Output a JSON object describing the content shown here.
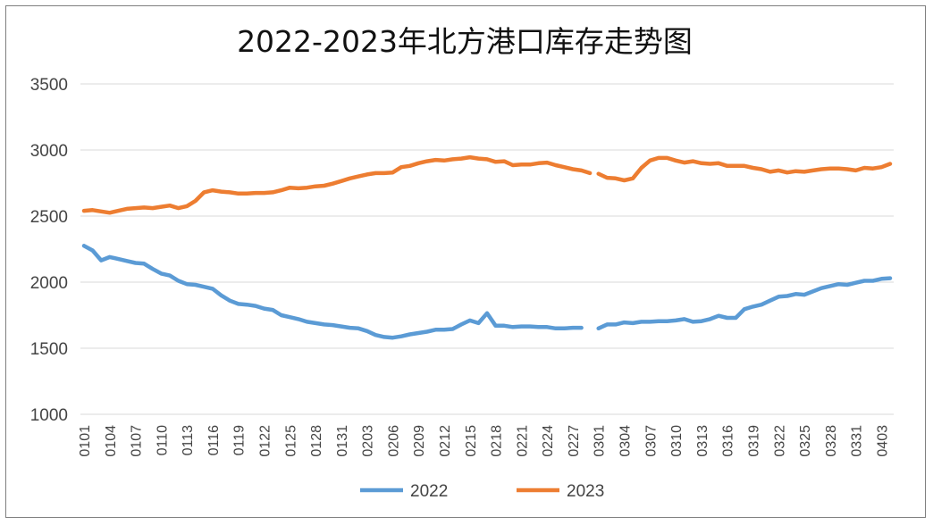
{
  "chart_data": {
    "type": "line",
    "title": "2022-2023年北方港口库存走势图",
    "xlabel": "",
    "ylabel": "",
    "ylim": [
      1000,
      3500
    ],
    "yticks": [
      1000,
      1500,
      2000,
      2500,
      3000,
      3500
    ],
    "grid": true,
    "legend": "bottom",
    "categories": [
      "0101",
      "0104",
      "0107",
      "0110",
      "0113",
      "0116",
      "0119",
      "0122",
      "0125",
      "0128",
      "0131",
      "0203",
      "0206",
      "0209",
      "0212",
      "0215",
      "0218",
      "0221",
      "0224",
      "0227",
      "0301",
      "0304",
      "0307",
      "0310",
      "0313",
      "0316",
      "0319",
      "0322",
      "0325",
      "0328",
      "0331",
      "0403"
    ],
    "x_index_range": [
      0,
      94
    ],
    "series": [
      {
        "name": "2022",
        "color": "#5B9BD5",
        "points": [
          [
            0,
            2275
          ],
          [
            1,
            2240
          ],
          [
            2,
            2165
          ],
          [
            3,
            2190
          ],
          [
            4,
            2175
          ],
          [
            5,
            2160
          ],
          [
            6,
            2145
          ],
          [
            7,
            2140
          ],
          [
            8,
            2100
          ],
          [
            9,
            2065
          ],
          [
            10,
            2050
          ],
          [
            11,
            2010
          ],
          [
            12,
            1985
          ],
          [
            13,
            1980
          ],
          [
            14,
            1965
          ],
          [
            15,
            1950
          ],
          [
            16,
            1900
          ],
          [
            17,
            1860
          ],
          [
            18,
            1835
          ],
          [
            19,
            1830
          ],
          [
            20,
            1820
          ],
          [
            21,
            1800
          ],
          [
            22,
            1790
          ],
          [
            23,
            1750
          ],
          [
            24,
            1735
          ],
          [
            25,
            1720
          ],
          [
            26,
            1700
          ],
          [
            27,
            1690
          ],
          [
            28,
            1680
          ],
          [
            29,
            1675
          ],
          [
            30,
            1665
          ],
          [
            31,
            1655
          ],
          [
            32,
            1650
          ],
          [
            33,
            1630
          ],
          [
            34,
            1600
          ],
          [
            35,
            1585
          ],
          [
            36,
            1580
          ],
          [
            37,
            1590
          ],
          [
            38,
            1605
          ],
          [
            39,
            1615
          ],
          [
            40,
            1625
          ],
          [
            41,
            1640
          ],
          [
            42,
            1640
          ],
          [
            43,
            1645
          ],
          [
            44,
            1680
          ],
          [
            45,
            1710
          ],
          [
            46,
            1690
          ],
          [
            47,
            1765
          ],
          [
            48,
            1670
          ],
          [
            49,
            1670
          ],
          [
            50,
            1660
          ],
          [
            51,
            1665
          ],
          [
            52,
            1665
          ],
          [
            53,
            1660
          ],
          [
            54,
            1660
          ],
          [
            55,
            1650
          ],
          [
            56,
            1650
          ],
          [
            57,
            1655
          ],
          [
            58,
            1655
          ],
          null,
          [
            60,
            1650
          ],
          [
            61,
            1680
          ],
          [
            62,
            1680
          ],
          [
            63,
            1695
          ],
          [
            64,
            1690
          ],
          [
            65,
            1700
          ],
          [
            66,
            1700
          ],
          [
            67,
            1705
          ],
          [
            68,
            1705
          ],
          [
            69,
            1710
          ],
          [
            70,
            1720
          ],
          [
            71,
            1700
          ],
          [
            72,
            1705
          ],
          [
            73,
            1720
          ],
          [
            74,
            1745
          ],
          [
            75,
            1730
          ],
          [
            76,
            1730
          ],
          [
            77,
            1795
          ],
          [
            78,
            1815
          ],
          [
            79,
            1830
          ],
          [
            80,
            1860
          ],
          [
            81,
            1890
          ],
          [
            82,
            1895
          ],
          [
            83,
            1910
          ],
          [
            84,
            1905
          ],
          [
            85,
            1930
          ],
          [
            86,
            1955
          ],
          [
            87,
            1970
          ],
          [
            88,
            1985
          ],
          [
            89,
            1980
          ],
          [
            90,
            1995
          ],
          [
            91,
            2010
          ],
          [
            92,
            2010
          ],
          [
            93,
            2025
          ],
          [
            94,
            2030
          ]
        ]
      },
      {
        "name": "2023",
        "color": "#ED7D31",
        "points": [
          [
            0,
            2540
          ],
          [
            1,
            2545
          ],
          [
            2,
            2535
          ],
          [
            3,
            2525
          ],
          [
            4,
            2540
          ],
          [
            5,
            2555
          ],
          [
            6,
            2560
          ],
          [
            7,
            2565
          ],
          [
            8,
            2560
          ],
          [
            9,
            2570
          ],
          [
            10,
            2580
          ],
          [
            11,
            2560
          ],
          [
            12,
            2575
          ],
          [
            13,
            2615
          ],
          [
            14,
            2680
          ],
          [
            15,
            2695
          ],
          [
            16,
            2685
          ],
          [
            17,
            2680
          ],
          [
            18,
            2670
          ],
          [
            19,
            2670
          ],
          [
            20,
            2675
          ],
          [
            21,
            2675
          ],
          [
            22,
            2680
          ],
          [
            23,
            2695
          ],
          [
            24,
            2715
          ],
          [
            25,
            2710
          ],
          [
            26,
            2715
          ],
          [
            27,
            2725
          ],
          [
            28,
            2730
          ],
          [
            29,
            2745
          ],
          [
            30,
            2765
          ],
          [
            31,
            2785
          ],
          [
            32,
            2800
          ],
          [
            33,
            2815
          ],
          [
            34,
            2825
          ],
          [
            35,
            2825
          ],
          [
            36,
            2830
          ],
          [
            37,
            2870
          ],
          [
            38,
            2880
          ],
          [
            39,
            2900
          ],
          [
            40,
            2915
          ],
          [
            41,
            2925
          ],
          [
            42,
            2920
          ],
          [
            43,
            2930
          ],
          [
            44,
            2935
          ],
          [
            45,
            2945
          ],
          [
            46,
            2935
          ],
          [
            47,
            2930
          ],
          [
            48,
            2910
          ],
          [
            49,
            2915
          ],
          [
            50,
            2885
          ],
          [
            51,
            2890
          ],
          [
            52,
            2890
          ],
          [
            53,
            2900
          ],
          [
            54,
            2905
          ],
          [
            55,
            2885
          ],
          [
            56,
            2870
          ],
          [
            57,
            2855
          ],
          [
            58,
            2845
          ],
          [
            59,
            2825
          ],
          null,
          [
            60,
            2820
          ],
          [
            61,
            2790
          ],
          [
            62,
            2785
          ],
          [
            63,
            2770
          ],
          [
            64,
            2785
          ],
          [
            65,
            2865
          ],
          [
            66,
            2920
          ],
          [
            67,
            2940
          ],
          [
            68,
            2940
          ],
          [
            69,
            2920
          ],
          [
            70,
            2905
          ],
          [
            71,
            2915
          ],
          [
            72,
            2900
          ],
          [
            73,
            2895
          ],
          [
            74,
            2900
          ],
          [
            75,
            2880
          ],
          [
            76,
            2880
          ],
          [
            77,
            2880
          ],
          [
            78,
            2865
          ],
          [
            79,
            2855
          ],
          [
            80,
            2835
          ],
          [
            81,
            2845
          ],
          [
            82,
            2830
          ],
          [
            83,
            2840
          ],
          [
            84,
            2835
          ],
          [
            85,
            2845
          ],
          [
            86,
            2855
          ],
          [
            87,
            2860
          ],
          [
            88,
            2860
          ],
          [
            89,
            2855
          ],
          [
            90,
            2845
          ],
          [
            91,
            2865
          ],
          [
            92,
            2860
          ],
          [
            93,
            2870
          ],
          [
            94,
            2895
          ]
        ]
      }
    ]
  }
}
